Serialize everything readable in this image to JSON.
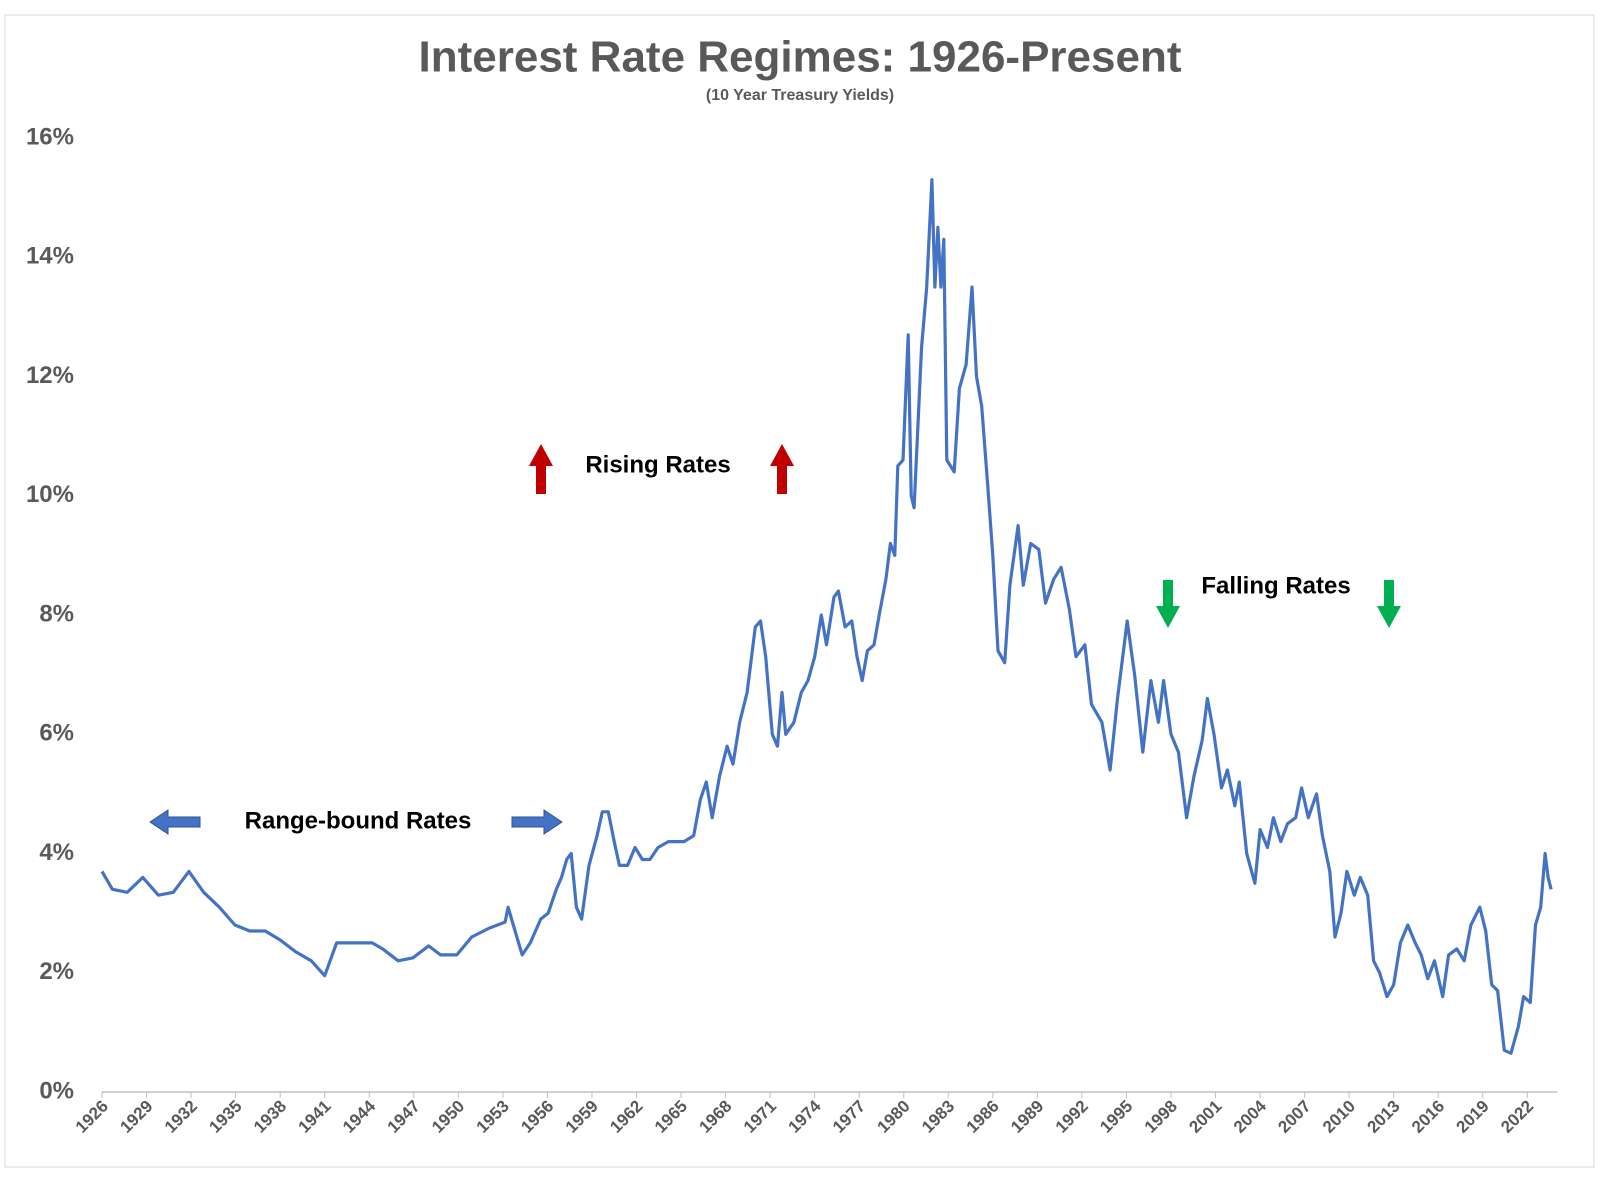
{
  "chart_data": {
    "type": "line",
    "title": "Interest Rate Regimes: 1926-Present",
    "subtitle": "(10 Year Treasury Yields)",
    "color": "#4472c4",
    "x": [
      1926,
      1926.7,
      1927.7,
      1928.75,
      1929.8,
      1930.8,
      1931.85,
      1932.85,
      1933.9,
      1934.95,
      1935.95,
      1937,
      1938,
      1939.05,
      1940.1,
      1941,
      1941.8,
      1944.2,
      1944.9,
      1945.95,
      1946.95,
      1948,
      1948.8,
      1949.9,
      1950.9,
      1952.1,
      1953.15,
      1953.35,
      1953.7,
      1954.3,
      1954.85,
      1955.55,
      1956.05,
      1956.6,
      1956.95,
      1957.3,
      1957.6,
      1957.95,
      1958.3,
      1958.8,
      1959.35,
      1959.7,
      1960.1,
      1960.5,
      1960.85,
      1961.4,
      1961.9,
      1962.4,
      1962.9,
      1963.45,
      1964.15,
      1965.2,
      1965.85,
      1966.3,
      1966.7,
      1967.1,
      1967.6,
      1968.1,
      1968.5,
      1968.95,
      1969.45,
      1970,
      1970.35,
      1970.7,
      1971.15,
      1971.5,
      1971.8,
      1972.05,
      1972.6,
      1973.1,
      1973.55,
      1974,
      1974.45,
      1974.8,
      1975.3,
      1975.6,
      1976.05,
      1976.5,
      1976.85,
      1977.2,
      1977.55,
      1978,
      1978.35,
      1978.8,
      1979.1,
      1979.4,
      1979.6,
      1979.95,
      1980.3,
      1980.5,
      1980.7,
      1981.2,
      1981.55,
      1981.9,
      1982.1,
      1982.3,
      1982.5,
      1982.7,
      1982.9,
      1983.4,
      1983.75,
      1984.2,
      1984.6,
      1984.9,
      1985.25,
      1985.65,
      1986,
      1986.35,
      1986.8,
      1987.15,
      1987.7,
      1988.05,
      1988.55,
      1989.1,
      1989.55,
      1990.1,
      1990.6,
      1991.15,
      1991.6,
      1992.2,
      1992.65,
      1993.35,
      1993.9,
      1994.4,
      1995.05,
      1995.55,
      1996.1,
      1996.65,
      1997.15,
      1997.5,
      1998,
      1998.5,
      1999.05,
      1999.55,
      2000.1,
      2000.45,
      2000.9,
      2001.4,
      2001.8,
      2002.3,
      2002.6,
      2003.1,
      2003.65,
      2004,
      2004.5,
      2004.9,
      2005.4,
      2005.85,
      2006.4,
      2006.8,
      2007.25,
      2007.8,
      2008.2,
      2008.7,
      2009.05,
      2009.45,
      2009.85,
      2010.35,
      2010.75,
      2011.25,
      2011.65,
      2012.05,
      2012.55,
      2013,
      2013.45,
      2013.95,
      2014.45,
      2014.85,
      2015.3,
      2015.75,
      2016.3,
      2016.7,
      2017.25,
      2017.75,
      2018.2,
      2018.8,
      2019.2,
      2019.6,
      2020,
      2020.45,
      2020.9,
      2021.4,
      2021.75,
      2022.2,
      2022.55,
      2022.9,
      2023.2,
      2023.4,
      2023.6
    ],
    "values": [
      3.7,
      3.4,
      3.35,
      3.6,
      3.3,
      3.35,
      3.7,
      3.35,
      3.1,
      2.8,
      2.7,
      2.7,
      2.55,
      2.35,
      2.2,
      1.95,
      2.5,
      2.5,
      2.4,
      2.2,
      2.25,
      2.45,
      2.3,
      2.3,
      2.6,
      2.75,
      2.85,
      3.1,
      2.8,
      2.3,
      2.5,
      2.9,
      3,
      3.4,
      3.6,
      3.9,
      4,
      3.1,
      2.9,
      3.8,
      4.3,
      4.7,
      4.7,
      4.2,
      3.8,
      3.8,
      4.1,
      3.9,
      3.9,
      4.1,
      4.2,
      4.2,
      4.3,
      4.9,
      5.2,
      4.6,
      5.3,
      5.8,
      5.5,
      6.2,
      6.7,
      7.8,
      7.9,
      7.3,
      6,
      5.8,
      6.7,
      6,
      6.2,
      6.7,
      6.9,
      7.3,
      8,
      7.5,
      8.3,
      8.4,
      7.8,
      7.9,
      7.3,
      6.9,
      7.4,
      7.5,
      8,
      8.6,
      9.2,
      9,
      10.5,
      10.6,
      12.7,
      10,
      9.8,
      12.5,
      13.5,
      15.3,
      13.5,
      14.5,
      13.5,
      14.3,
      10.6,
      10.4,
      11.8,
      12.2,
      13.5,
      12,
      11.5,
      10.2,
      9,
      7.4,
      7.2,
      8.5,
      9.5,
      8.5,
      9.2,
      9.1,
      8.2,
      8.6,
      8.8,
      8.1,
      7.3,
      7.5,
      6.5,
      6.2,
      5.4,
      6.6,
      7.9,
      7,
      5.7,
      6.9,
      6.2,
      6.9,
      6,
      5.7,
      4.6,
      5.3,
      5.9,
      6.6,
      6,
      5.1,
      5.4,
      4.8,
      5.2,
      4,
      3.5,
      4.4,
      4.1,
      4.6,
      4.2,
      4.5,
      4.6,
      5.1,
      4.6,
      5,
      4.3,
      3.7,
      2.6,
      3,
      3.7,
      3.3,
      3.6,
      3.3,
      2.2,
      2,
      1.6,
      1.8,
      2.5,
      2.8,
      2.5,
      2.3,
      1.9,
      2.2,
      1.6,
      2.3,
      2.4,
      2.2,
      2.8,
      3.1,
      2.7,
      1.8,
      1.7,
      0.7,
      0.65,
      1.1,
      1.6,
      1.5,
      2.8,
      3.1,
      4,
      3.6,
      3.4
    ],
    "xlim": [
      1926,
      2024
    ],
    "xticks": [
      1926,
      1929,
      1932,
      1935,
      1938,
      1941,
      1944,
      1947,
      1950,
      1953,
      1956,
      1959,
      1962,
      1965,
      1968,
      1971,
      1974,
      1977,
      1980,
      1983,
      1986,
      1989,
      1992,
      1995,
      1998,
      2001,
      2004,
      2007,
      2010,
      2013,
      2016,
      2019,
      2022
    ],
    "ylim": [
      0,
      16
    ],
    "yticks": [
      {
        "value": 0,
        "label": "0%"
      },
      {
        "value": 2,
        "label": "2%"
      },
      {
        "value": 4,
        "label": "4%"
      },
      {
        "value": 6,
        "label": "6%"
      },
      {
        "value": 8,
        "label": "8%"
      },
      {
        "value": 10,
        "label": "10%"
      },
      {
        "value": 12,
        "label": "12%"
      },
      {
        "value": 14,
        "label": "14%"
      },
      {
        "value": 16,
        "label": "16%"
      }
    ],
    "grid": false,
    "annotations": [
      "Range-bound Rates",
      "Rising Rates",
      "Falling Rates"
    ]
  }
}
